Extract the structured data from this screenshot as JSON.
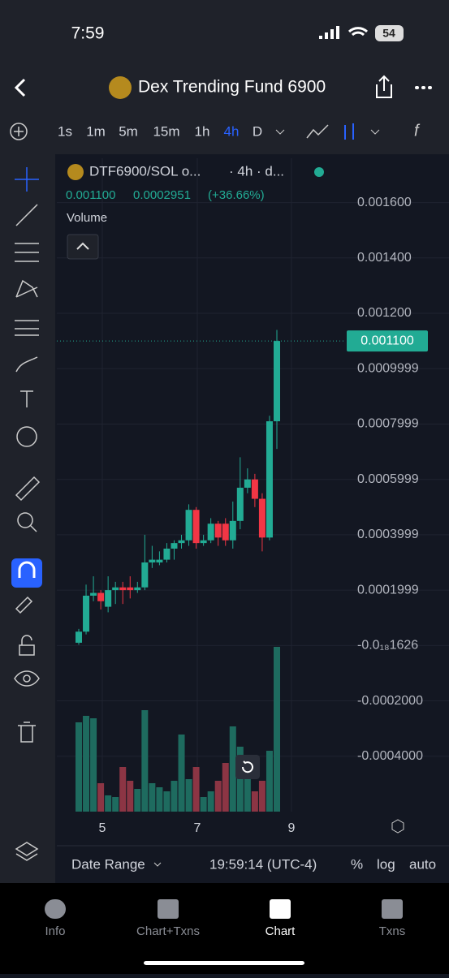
{
  "status_bar": {
    "time": "7:59",
    "battery": "54"
  },
  "header": {
    "title": "Dex Trending Fund 6900"
  },
  "toolbar": {
    "intervals": [
      "1s",
      "1m",
      "5m",
      "15m",
      "1h",
      "4h",
      "D"
    ],
    "active_interval": "4h"
  },
  "legend": {
    "symbol": "DTF6900/SOL o...",
    "meta": "· 4h · d...",
    "last": "0.001100",
    "change": "0.0002951",
    "change_pct": "(+36.66%)",
    "volume_label": "Volume"
  },
  "chart_data": {
    "type": "candlestick",
    "categories": [
      null,
      null,
      null,
      null,
      null,
      null,
      null,
      null,
      null,
      null,
      null,
      null,
      null,
      null,
      null,
      null,
      null,
      null,
      null,
      null,
      null,
      null,
      null,
      null,
      null,
      null,
      null,
      null
    ],
    "open": [
      1e-05,
      5e-05,
      0.00018,
      0.00019,
      0.00014,
      0.0002,
      0.00021,
      0.00021,
      0.0002,
      0.00021,
      0.0003,
      0.0003,
      0.00031,
      0.00035,
      0.00037,
      0.00038,
      0.00049,
      0.00037,
      0.00038,
      0.00044,
      0.00044,
      0.00038,
      0.00045,
      0.00057,
      0.0006,
      0.00053,
      0.00039,
      0.00081
    ],
    "high": [
      6e-05,
      0.00022,
      0.00025,
      0.0002,
      0.00025,
      0.00023,
      0.00023,
      0.00025,
      0.00023,
      0.0004,
      0.00036,
      0.00034,
      0.00037,
      0.00038,
      0.0004,
      0.00051,
      0.0005,
      0.0004,
      0.00046,
      0.00045,
      0.00046,
      0.00052,
      0.00068,
      0.00064,
      0.00062,
      0.00055,
      0.00083,
      0.00114
    ],
    "low": [
      3e-06,
      4e-05,
      0.00016,
      0.00013,
      0.00012,
      0.00015,
      0.00015,
      0.00017,
      0.00019,
      0.0002,
      0.00028,
      0.00029,
      0.0003,
      0.00031,
      0.00035,
      0.00036,
      0.00035,
      0.00036,
      0.00037,
      0.00036,
      0.00036,
      0.00035,
      0.00042,
      0.00055,
      0.0005,
      0.00034,
      0.00038,
      0.00071
    ],
    "close": [
      5e-05,
      0.00018,
      0.00019,
      0.00016,
      0.0002,
      0.00021,
      0.0002,
      0.0002,
      0.00021,
      0.0003,
      0.00031,
      0.00031,
      0.00035,
      0.00037,
      0.00038,
      0.00049,
      0.00037,
      0.00038,
      0.00044,
      0.00039,
      0.00038,
      0.00045,
      0.00057,
      0.0006,
      0.00053,
      0.00039,
      0.00081,
      0.0011
    ],
    "volume": [
      110,
      118,
      115,
      35,
      20,
      18,
      55,
      38,
      28,
      125,
      35,
      30,
      25,
      38,
      95,
      40,
      55,
      18,
      25,
      38,
      60,
      105,
      80,
      50,
      25,
      38,
      75,
      203
    ],
    "up_color": "#22ab94",
    "down_color": "#f23645",
    "up_volume_color": "#1e6b5f",
    "down_volume_color": "#8c3544",
    "ylim": [
      -0.0006,
      0.00176
    ],
    "yticks": [
      {
        "value": 0.0016,
        "label": "0.001600"
      },
      {
        "value": 0.0014,
        "label": "0.001400"
      },
      {
        "value": 0.0012,
        "label": "0.001200"
      },
      0.0009999,
      0.0007999,
      0.0005999,
      0.0003999,
      0.0001999,
      {
        "value": -1.626e-22,
        "label": "-0.0₁₈1626"
      },
      {
        "value": -0.0002,
        "label": "-0.0002000"
      },
      {
        "value": -0.0004,
        "label": "-0.0004000"
      }
    ],
    "last_price": {
      "value": 0.0011,
      "label": "0.001100"
    },
    "x_labels": [
      "5",
      "7",
      "9"
    ],
    "grid": true
  },
  "footer": {
    "date_range": "Date Range",
    "clock": "19:59:14 (UTC-4)",
    "percent": "%",
    "log": "log",
    "auto": "auto"
  },
  "nav": [
    "Info",
    "Chart+Txns",
    "Chart",
    "Txns"
  ],
  "active_nav": "Chart"
}
